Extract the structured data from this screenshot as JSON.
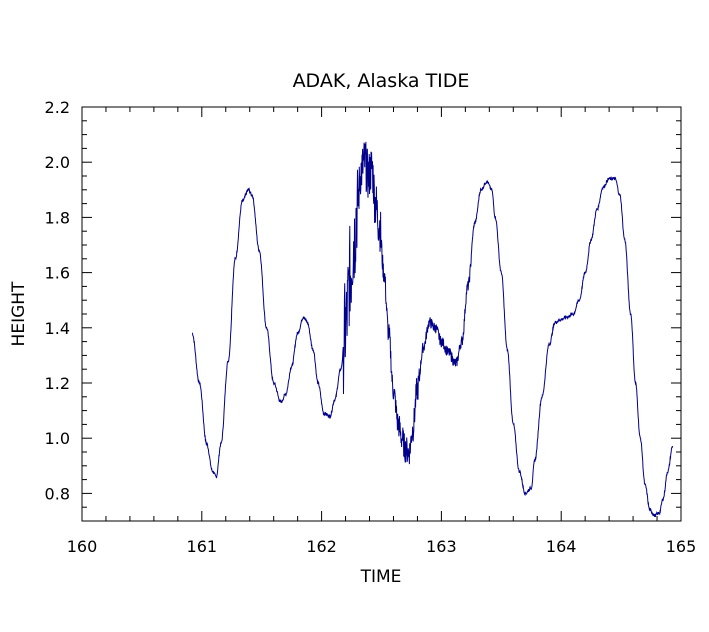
{
  "chart_data": {
    "type": "line",
    "title": "ADAK, Alaska TIDE",
    "xlabel": "TIME",
    "ylabel": "HEIGHT",
    "xlim": [
      160,
      165
    ],
    "ylim": [
      0.7,
      2.2
    ],
    "xticks": [
      "160",
      "161",
      "162",
      "163",
      "164",
      "165"
    ],
    "yticks": [
      "0.8",
      "1.0",
      "1.2",
      "1.4",
      "1.6",
      "1.8",
      "2.0",
      "2.2"
    ],
    "grid": false,
    "line_color": "#00008b",
    "series": [
      {
        "x": [
          160.92,
          160.98,
          161.04,
          161.09,
          161.12,
          161.16,
          161.22,
          161.28,
          161.34,
          161.39,
          161.42,
          161.48,
          161.54,
          161.6,
          161.66,
          161.7,
          161.75,
          161.8,
          161.85,
          161.88,
          161.93,
          161.97,
          162.02,
          162.07,
          162.11,
          162.16,
          162.2,
          162.24,
          162.27,
          162.3,
          162.33,
          162.36,
          162.39,
          162.42,
          162.45,
          162.48,
          162.52,
          162.56,
          162.6,
          162.64,
          162.67,
          162.7,
          162.73,
          162.76,
          162.8,
          162.85,
          162.9,
          162.95,
          163.0,
          163.06,
          163.12,
          163.17,
          163.22,
          163.28,
          163.33,
          163.38,
          163.42,
          163.45,
          163.5,
          163.55,
          163.6,
          163.65,
          163.7,
          163.75,
          163.78,
          163.84,
          163.9,
          163.95,
          164.0,
          164.05,
          164.1,
          164.15,
          164.2,
          164.25,
          164.3,
          164.35,
          164.4,
          164.45,
          164.49,
          164.53,
          164.58,
          164.62,
          164.66,
          164.7,
          164.74,
          164.78,
          164.82,
          164.85,
          164.89,
          164.93
        ],
        "y": [
          1.38,
          1.2,
          0.98,
          0.88,
          0.86,
          0.98,
          1.28,
          1.65,
          1.86,
          1.9,
          1.88,
          1.68,
          1.4,
          1.2,
          1.13,
          1.16,
          1.26,
          1.38,
          1.44,
          1.42,
          1.32,
          1.2,
          1.09,
          1.08,
          1.14,
          1.25,
          1.4,
          1.6,
          1.72,
          1.85,
          1.97,
          2.0,
          1.95,
          1.98,
          1.85,
          1.78,
          1.6,
          1.38,
          1.17,
          1.05,
          1.0,
          0.96,
          0.95,
          1.03,
          1.18,
          1.33,
          1.42,
          1.4,
          1.35,
          1.31,
          1.27,
          1.35,
          1.55,
          1.78,
          1.9,
          1.93,
          1.9,
          1.8,
          1.6,
          1.32,
          1.05,
          0.88,
          0.8,
          0.82,
          0.92,
          1.15,
          1.34,
          1.42,
          1.43,
          1.44,
          1.45,
          1.5,
          1.6,
          1.72,
          1.83,
          1.91,
          1.94,
          1.94,
          1.88,
          1.72,
          1.45,
          1.2,
          1.0,
          0.83,
          0.74,
          0.72,
          0.73,
          0.78,
          0.88,
          0.97
        ]
      }
    ]
  }
}
